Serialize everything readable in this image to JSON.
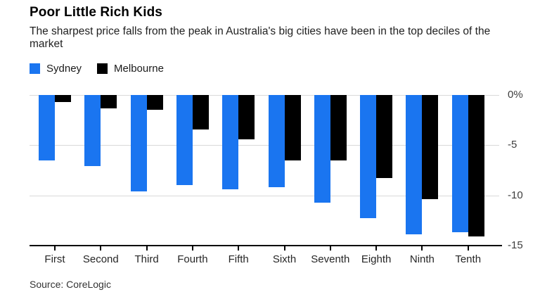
{
  "header": {
    "title": "Poor Little Rich Kids",
    "subtitle": "The sharpest price falls from the peak in Australia's big cities have been in the top deciles of the market"
  },
  "legend": {
    "items": [
      {
        "label": "Sydney",
        "color": "#1a75f0"
      },
      {
        "label": "Melbourne",
        "color": "#000000"
      }
    ]
  },
  "chart_data": {
    "type": "bar",
    "title": "Poor Little Rich Kids",
    "subtitle": "The sharpest price falls from the peak in Australia's big cities have been in the top deciles of the market",
    "categories": [
      "First",
      "Second",
      "Third",
      "Fourth",
      "Fifth",
      "Sixth",
      "Seventh",
      "Eighth",
      "Ninth",
      "Tenth"
    ],
    "series": [
      {
        "name": "Sydney",
        "color": "#1a75f0",
        "values": [
          -6.5,
          -7.1,
          -9.6,
          -9.0,
          -9.4,
          -9.2,
          -10.7,
          -12.3,
          -13.9,
          -13.7
        ]
      },
      {
        "name": "Melbourne",
        "color": "#000000",
        "values": [
          -0.7,
          -1.3,
          -1.5,
          -3.4,
          -4.4,
          -6.5,
          -6.5,
          -8.3,
          -10.4,
          -14.1
        ]
      }
    ],
    "xlabel": "",
    "ylabel": "",
    "unit": "percent",
    "ylim": [
      -15,
      0
    ],
    "y_ticks": [
      {
        "value": 0,
        "label": "0%"
      },
      {
        "value": -5,
        "label": "-5"
      },
      {
        "value": -10,
        "label": "-10"
      },
      {
        "value": -15,
        "label": "-15"
      }
    ],
    "grid": "horizontal",
    "legend_position": "top-left",
    "y_axis_side": "right"
  },
  "footer": {
    "source": "Source: CoreLogic"
  },
  "colors": {
    "gridline": "#d9d9d9",
    "axis_line": "#000000",
    "y_tick_label": "#3d3d3d",
    "x_tick_label": "#262626"
  }
}
